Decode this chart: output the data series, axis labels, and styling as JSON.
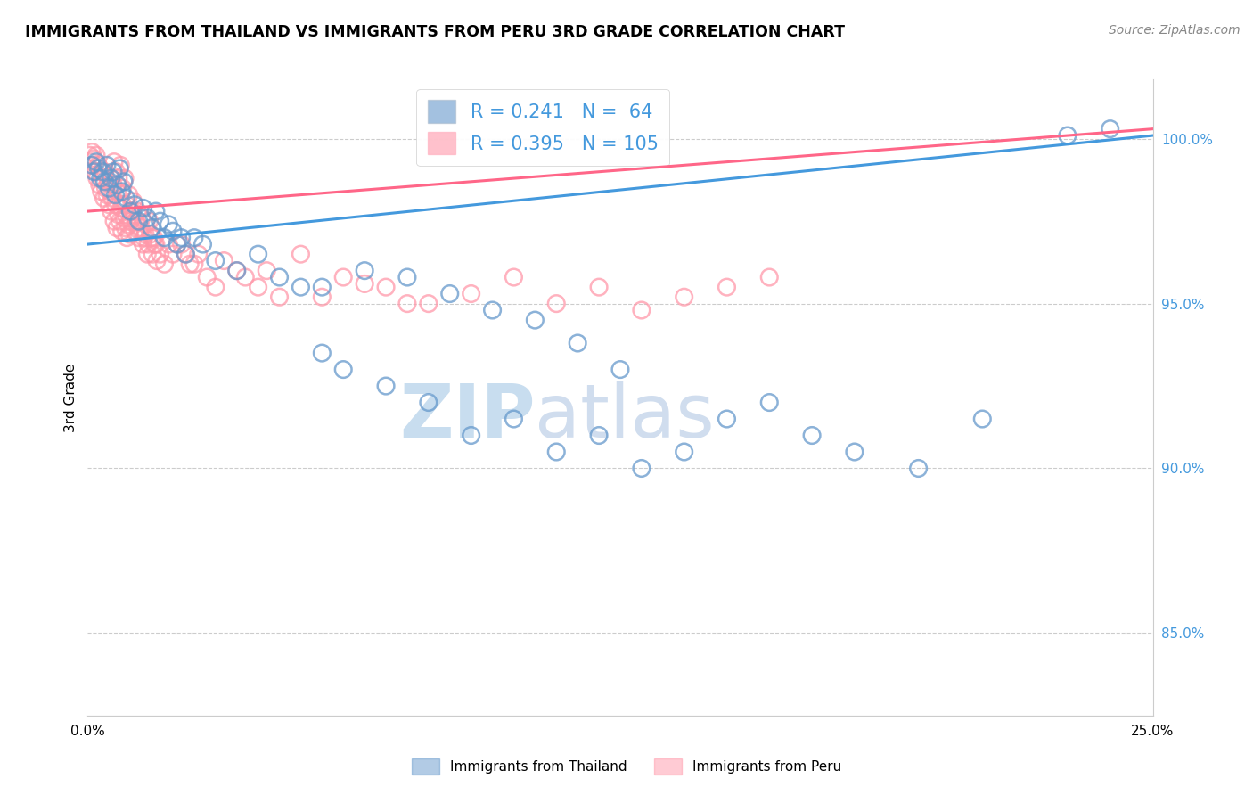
{
  "title": "IMMIGRANTS FROM THAILAND VS IMMIGRANTS FROM PERU 3RD GRADE CORRELATION CHART",
  "source": "Source: ZipAtlas.com",
  "ylabel": "3rd Grade",
  "y_ticks": [
    85.0,
    90.0,
    95.0,
    100.0
  ],
  "y_tick_labels": [
    "85.0%",
    "90.0%",
    "95.0%",
    "100.0%"
  ],
  "xmin": 0.0,
  "xmax": 25.0,
  "ymin": 82.5,
  "ymax": 101.8,
  "legend_R_blue": "0.241",
  "legend_N_blue": "64",
  "legend_R_pink": "0.395",
  "legend_N_pink": "105",
  "watermark_zip": "ZIP",
  "watermark_atlas": "atlas",
  "blue_color": "#6699CC",
  "pink_color": "#FF99AA",
  "line_blue": "#4499DD",
  "line_pink": "#FF6688",
  "blue_scatter_x": [
    0.1,
    0.15,
    0.2,
    0.25,
    0.3,
    0.35,
    0.4,
    0.45,
    0.5,
    0.55,
    0.6,
    0.65,
    0.7,
    0.75,
    0.8,
    0.85,
    0.9,
    1.0,
    1.1,
    1.2,
    1.3,
    1.4,
    1.5,
    1.6,
    1.7,
    1.8,
    1.9,
    2.0,
    2.1,
    2.2,
    2.3,
    2.5,
    2.7,
    3.0,
    3.5,
    4.0,
    4.5,
    5.0,
    5.5,
    6.0,
    7.0,
    8.0,
    9.0,
    10.0,
    11.0,
    12.0,
    13.0,
    14.0,
    15.0,
    16.0,
    17.0,
    18.0,
    19.5,
    21.0,
    23.0,
    24.0,
    5.5,
    6.5,
    7.5,
    8.5,
    9.5,
    10.5,
    11.5,
    12.5
  ],
  "blue_scatter_y": [
    99.2,
    99.0,
    99.3,
    99.1,
    98.8,
    99.0,
    98.7,
    99.2,
    98.5,
    98.8,
    99.0,
    98.3,
    98.6,
    99.1,
    98.4,
    98.7,
    98.2,
    97.8,
    98.0,
    97.5,
    97.9,
    97.6,
    97.3,
    97.8,
    97.5,
    97.0,
    97.4,
    97.2,
    96.8,
    97.0,
    96.5,
    97.0,
    96.8,
    96.3,
    96.0,
    96.5,
    95.8,
    95.5,
    93.5,
    93.0,
    92.5,
    92.0,
    91.0,
    91.5,
    90.5,
    91.0,
    90.0,
    90.5,
    91.5,
    92.0,
    91.0,
    90.5,
    90.0,
    91.5,
    100.1,
    100.3,
    95.5,
    96.0,
    95.8,
    95.3,
    94.8,
    94.5,
    93.8,
    93.0
  ],
  "pink_scatter_x": [
    0.05,
    0.08,
    0.1,
    0.12,
    0.15,
    0.18,
    0.2,
    0.22,
    0.25,
    0.28,
    0.3,
    0.32,
    0.35,
    0.38,
    0.4,
    0.42,
    0.45,
    0.48,
    0.5,
    0.52,
    0.55,
    0.58,
    0.6,
    0.62,
    0.65,
    0.68,
    0.7,
    0.72,
    0.75,
    0.78,
    0.8,
    0.82,
    0.85,
    0.88,
    0.9,
    0.92,
    0.95,
    0.98,
    1.0,
    1.05,
    1.1,
    1.15,
    1.2,
    1.25,
    1.3,
    1.35,
    1.4,
    1.5,
    1.6,
    1.7,
    1.8,
    1.9,
    2.0,
    2.2,
    2.4,
    2.6,
    2.8,
    3.0,
    3.5,
    4.0,
    4.5,
    5.0,
    6.0,
    7.0,
    8.0,
    9.0,
    10.0,
    11.0,
    12.0,
    13.0,
    14.0,
    15.0,
    16.0,
    5.5,
    6.5,
    7.5,
    3.2,
    3.7,
    4.2,
    2.1,
    2.3,
    2.5,
    1.45,
    1.55,
    0.62,
    0.67,
    0.72,
    0.77,
    0.82,
    0.87,
    0.92,
    0.97,
    1.02,
    1.07,
    1.12,
    1.17,
    1.22,
    1.27,
    1.32,
    1.37,
    1.42,
    1.47,
    1.52,
    1.57,
    1.62
  ],
  "pink_scatter_y": [
    99.5,
    99.3,
    99.6,
    99.2,
    99.4,
    99.0,
    99.5,
    98.8,
    99.2,
    98.6,
    99.0,
    98.4,
    98.8,
    98.2,
    99.0,
    98.5,
    98.3,
    98.7,
    98.0,
    98.4,
    97.8,
    98.2,
    98.6,
    97.5,
    98.0,
    97.3,
    98.4,
    97.7,
    97.5,
    97.9,
    97.2,
    98.0,
    97.6,
    97.3,
    97.7,
    97.0,
    97.4,
    97.1,
    97.5,
    97.8,
    97.2,
    97.5,
    97.0,
    97.3,
    96.8,
    97.1,
    96.5,
    97.0,
    96.8,
    96.5,
    96.2,
    96.8,
    96.5,
    96.8,
    96.2,
    96.5,
    95.8,
    95.5,
    96.0,
    95.5,
    95.2,
    96.5,
    95.8,
    95.5,
    95.0,
    95.3,
    95.8,
    95.0,
    95.5,
    94.8,
    95.2,
    95.5,
    95.8,
    95.2,
    95.6,
    95.0,
    96.3,
    95.8,
    96.0,
    96.8,
    96.5,
    96.2,
    97.5,
    97.0,
    99.3,
    99.0,
    98.8,
    99.2,
    98.5,
    98.8,
    98.0,
    98.3,
    97.8,
    98.1,
    97.5,
    97.8,
    97.2,
    97.6,
    97.0,
    97.4,
    96.8,
    97.1,
    96.5,
    96.8,
    96.3
  ],
  "blue_line_x0": 0.0,
  "blue_line_x1": 25.0,
  "blue_line_y0": 96.8,
  "blue_line_y1": 100.1,
  "pink_line_x0": 0.0,
  "pink_line_x1": 25.0,
  "pink_line_y0": 97.8,
  "pink_line_y1": 100.3
}
